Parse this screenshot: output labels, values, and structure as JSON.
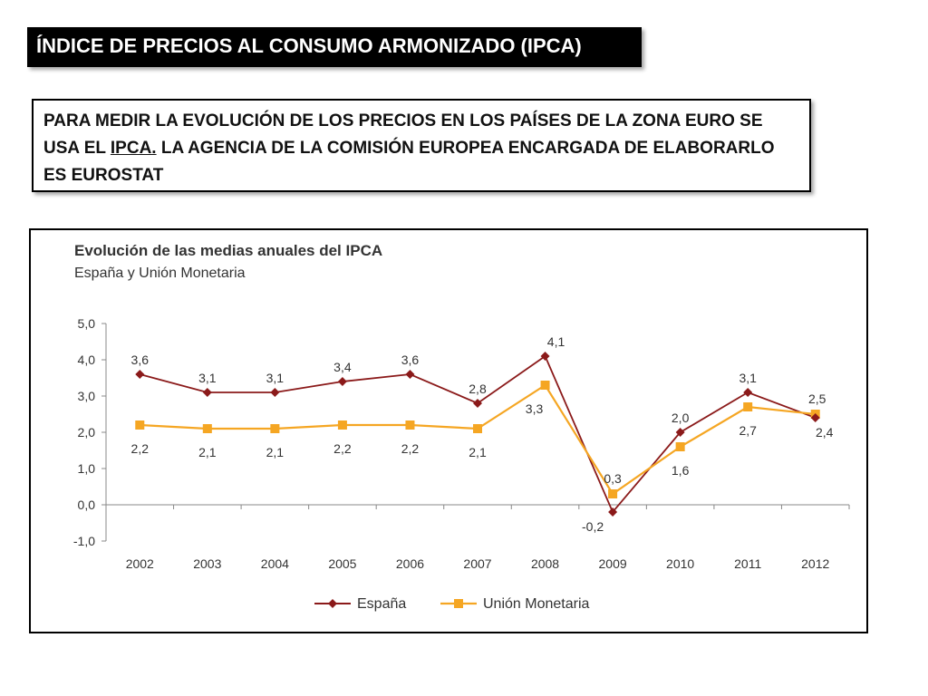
{
  "slide": {
    "title": "ÍNDICE DE PRECIOS AL CONSUMO ARMONIZADO (IPCA)",
    "text_part1": "PARA MEDIR LA EVOLUCIÓN DE LOS PRECIOS EN LOS PAÍSES DE LA ZONA EURO SE USA EL ",
    "text_ipca": "IPCA.",
    "text_part2": " LA AGENCIA DE LA COMISIÓN EUROPEA ENCARGADA DE ELABORARLO ES EUROSTAT"
  },
  "chart_data": {
    "type": "line",
    "title": "Evolución de las medias anuales del IPCA",
    "subtitle": "España y Unión Monetaria",
    "categories": [
      "2002",
      "2003",
      "2004",
      "2005",
      "2006",
      "2007",
      "2008",
      "2009",
      "2010",
      "2011",
      "2012"
    ],
    "ylim": [
      -1.0,
      5.0
    ],
    "yticks": [
      "-1,0",
      "0,0",
      "1,0",
      "2,0",
      "3,0",
      "4,0",
      "5,0"
    ],
    "grid": false,
    "legend_position": "bottom",
    "series": [
      {
        "name": "España",
        "color": "#8b1a1a",
        "marker": "diamond",
        "values": [
          3.6,
          3.1,
          3.1,
          3.4,
          3.6,
          2.8,
          4.1,
          -0.2,
          2.0,
          3.1,
          2.4
        ],
        "labels": [
          "3,6",
          "3,1",
          "3,1",
          "3,4",
          "3,6",
          "2,8",
          "4,1",
          "-0,2",
          "2,0",
          "3,1",
          "2,4"
        ]
      },
      {
        "name": "Unión Monetaria",
        "color": "#f5a623",
        "marker": "square",
        "values": [
          2.2,
          2.1,
          2.1,
          2.2,
          2.2,
          2.1,
          3.3,
          0.3,
          1.6,
          2.7,
          2.5
        ],
        "labels": [
          "2,2",
          "2,1",
          "2,1",
          "2,2",
          "2,2",
          "2,1",
          "3,3",
          "0,3",
          "1,6",
          "2,7",
          "2,5"
        ]
      }
    ]
  }
}
